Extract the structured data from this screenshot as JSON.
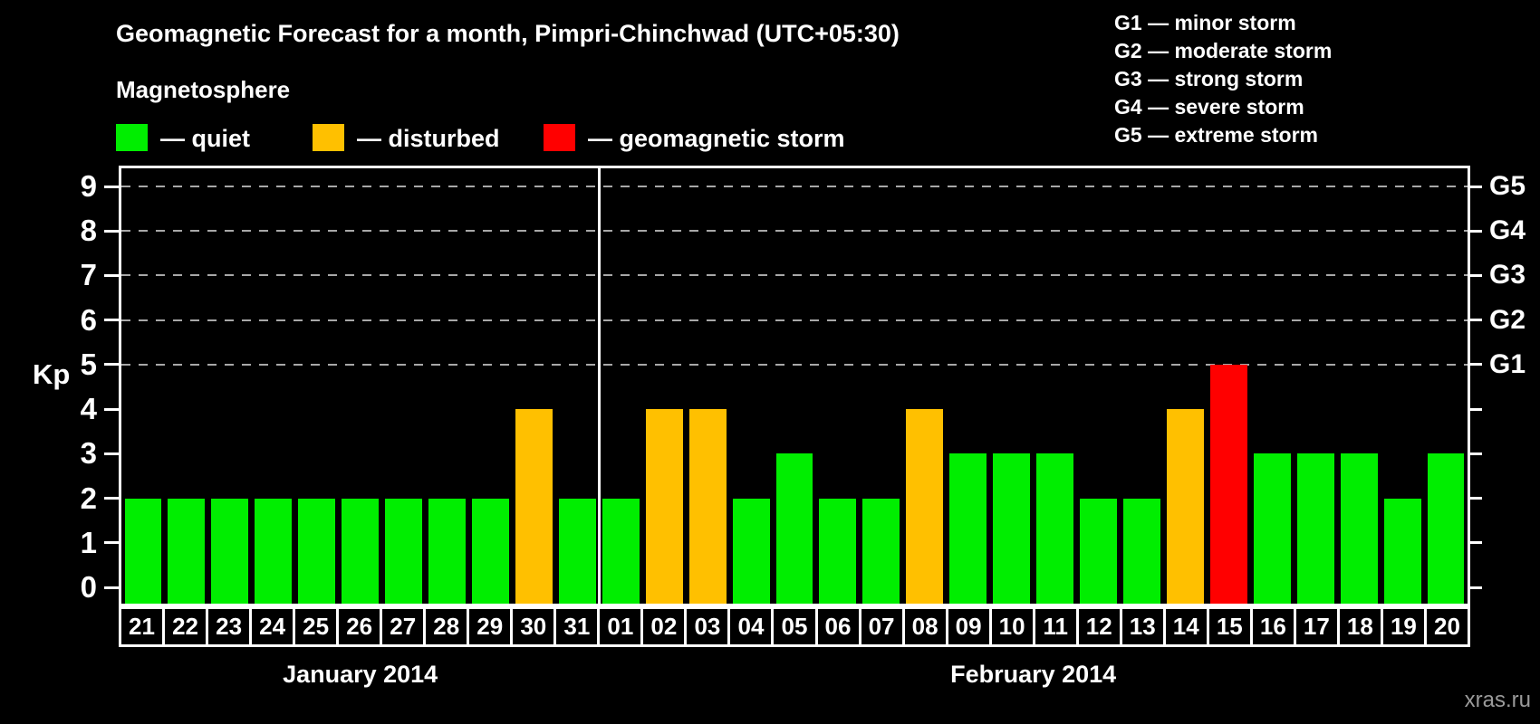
{
  "header": {
    "title": "Geomagnetic Forecast for a month, Pimpri-Chinchwad (UTC+05:30)",
    "subtitle": "Magnetosphere"
  },
  "legend": {
    "items": [
      {
        "key": "quiet",
        "label": "— quiet",
        "color": "#00ee00"
      },
      {
        "key": "disturbed",
        "label": "— disturbed",
        "color": "#ffc000"
      },
      {
        "key": "storm",
        "label": "— geomagnetic storm",
        "color": "#ff0000"
      }
    ]
  },
  "g_scale_legend": [
    "G1 — minor storm",
    "G2 — moderate storm",
    "G3 — strong storm",
    "G4 — severe storm",
    "G5 — extreme storm"
  ],
  "watermark": "xras.ru",
  "chart_data": {
    "type": "bar",
    "title": "Geomagnetic Forecast for a month, Pimpri-Chinchwad (UTC+05:30)",
    "xlabel": "",
    "ylabel": "Kp",
    "ylim": [
      0,
      9
    ],
    "grid": "dashed horizontal lines at Kp 5-9 only",
    "y_ticks": [
      0,
      1,
      2,
      3,
      4,
      5,
      6,
      7,
      8,
      9
    ],
    "gridlines_kp": [
      5,
      6,
      7,
      8,
      9
    ],
    "right_axis_labels": [
      {
        "label": "G1",
        "kp": 5
      },
      {
        "label": "G2",
        "kp": 6
      },
      {
        "label": "G3",
        "kp": 7
      },
      {
        "label": "G4",
        "kp": 8
      },
      {
        "label": "G5",
        "kp": 9
      }
    ],
    "months": [
      {
        "label": "January 2014",
        "start_index": 0,
        "days": 11
      },
      {
        "label": "February 2014",
        "start_index": 11,
        "days": 20
      }
    ],
    "categories": [
      "21",
      "22",
      "23",
      "24",
      "25",
      "26",
      "27",
      "28",
      "29",
      "30",
      "31",
      "01",
      "02",
      "03",
      "04",
      "05",
      "06",
      "07",
      "08",
      "09",
      "10",
      "11",
      "12",
      "13",
      "14",
      "15",
      "16",
      "17",
      "18",
      "19",
      "20"
    ],
    "values": [
      2,
      2,
      2,
      2,
      2,
      2,
      2,
      2,
      2,
      4,
      2,
      2,
      4,
      4,
      2,
      3,
      2,
      2,
      4,
      3,
      3,
      3,
      2,
      2,
      4,
      5,
      3,
      3,
      3,
      2,
      3
    ],
    "statuses": [
      "quiet",
      "quiet",
      "quiet",
      "quiet",
      "quiet",
      "quiet",
      "quiet",
      "quiet",
      "quiet",
      "disturbed",
      "quiet",
      "quiet",
      "disturbed",
      "disturbed",
      "quiet",
      "quiet",
      "quiet",
      "quiet",
      "disturbed",
      "quiet",
      "quiet",
      "quiet",
      "quiet",
      "quiet",
      "disturbed",
      "storm",
      "quiet",
      "quiet",
      "quiet",
      "quiet",
      "quiet"
    ],
    "status_colors": {
      "quiet": "#00ee00",
      "disturbed": "#ffc000",
      "storm": "#ff0000"
    }
  }
}
